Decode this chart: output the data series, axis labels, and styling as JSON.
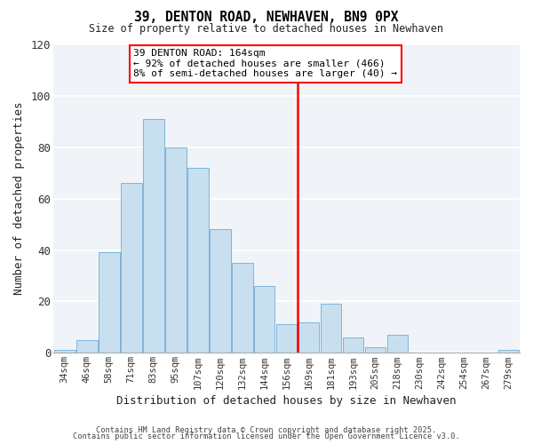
{
  "title": "39, DENTON ROAD, NEWHAVEN, BN9 0PX",
  "subtitle": "Size of property relative to detached houses in Newhaven",
  "xlabel": "Distribution of detached houses by size in Newhaven",
  "ylabel": "Number of detached properties",
  "bar_color": "#c8dff0",
  "bar_edge_color": "#7fb4d8",
  "background_color": "#ffffff",
  "plot_bg_color": "#f0f4f8",
  "grid_color": "#ffffff",
  "bin_labels": [
    "34sqm",
    "46sqm",
    "58sqm",
    "71sqm",
    "83sqm",
    "95sqm",
    "107sqm",
    "120sqm",
    "132sqm",
    "144sqm",
    "156sqm",
    "169sqm",
    "181sqm",
    "193sqm",
    "205sqm",
    "218sqm",
    "230sqm",
    "242sqm",
    "254sqm",
    "267sqm",
    "279sqm"
  ],
  "bin_values": [
    1,
    5,
    39,
    66,
    91,
    80,
    72,
    48,
    35,
    26,
    11,
    12,
    19,
    6,
    2,
    7,
    0,
    0,
    0,
    0,
    1
  ],
  "ref_line_x": 10.5,
  "ref_line_color": "red",
  "annotation_title": "39 DENTON ROAD: 164sqm",
  "annotation_line1": "← 92% of detached houses are smaller (466)",
  "annotation_line2": "8% of semi-detached houses are larger (40) →",
  "ylim": [
    0,
    120
  ],
  "yticks": [
    0,
    20,
    40,
    60,
    80,
    100,
    120
  ],
  "footnote1": "Contains HM Land Registry data © Crown copyright and database right 2025.",
  "footnote2": "Contains public sector information licensed under the Open Government Licence v3.0."
}
